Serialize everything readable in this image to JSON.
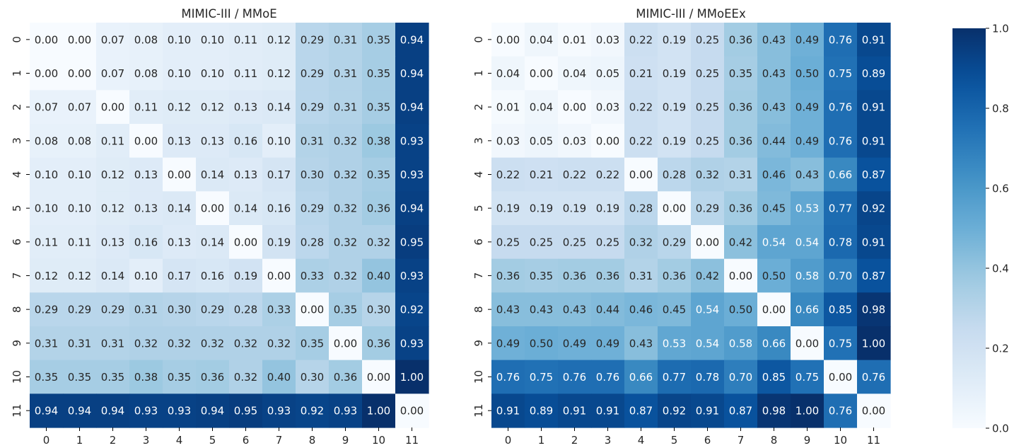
{
  "chart_data": [
    {
      "type": "heatmap",
      "title": "MIMIC-III / MMoE",
      "xlabel": "",
      "ylabel": "",
      "x_categories": [
        "0",
        "1",
        "2",
        "3",
        "4",
        "5",
        "6",
        "7",
        "8",
        "9",
        "10",
        "11"
      ],
      "y_categories": [
        "0",
        "1",
        "2",
        "3",
        "4",
        "5",
        "6",
        "7",
        "8",
        "9",
        "10",
        "11"
      ],
      "values": [
        [
          0.0,
          0.0,
          0.07,
          0.08,
          0.1,
          0.1,
          0.11,
          0.12,
          0.29,
          0.31,
          0.35,
          0.94
        ],
        [
          0.0,
          0.0,
          0.07,
          0.08,
          0.1,
          0.1,
          0.11,
          0.12,
          0.29,
          0.31,
          0.35,
          0.94
        ],
        [
          0.07,
          0.07,
          0.0,
          0.11,
          0.12,
          0.12,
          0.13,
          0.14,
          0.29,
          0.31,
          0.35,
          0.94
        ],
        [
          0.08,
          0.08,
          0.11,
          0.0,
          0.13,
          0.13,
          0.16,
          0.1,
          0.31,
          0.32,
          0.38,
          0.93
        ],
        [
          0.1,
          0.1,
          0.12,
          0.13,
          0.0,
          0.14,
          0.13,
          0.17,
          0.3,
          0.32,
          0.35,
          0.93
        ],
        [
          0.1,
          0.1,
          0.12,
          0.13,
          0.14,
          0.0,
          0.14,
          0.16,
          0.29,
          0.32,
          0.36,
          0.94
        ],
        [
          0.11,
          0.11,
          0.13,
          0.16,
          0.13,
          0.14,
          0.0,
          0.19,
          0.28,
          0.32,
          0.32,
          0.95
        ],
        [
          0.12,
          0.12,
          0.14,
          0.1,
          0.17,
          0.16,
          0.19,
          0.0,
          0.33,
          0.32,
          0.4,
          0.93
        ],
        [
          0.29,
          0.29,
          0.29,
          0.31,
          0.3,
          0.29,
          0.28,
          0.33,
          0.0,
          0.35,
          0.3,
          0.92
        ],
        [
          0.31,
          0.31,
          0.31,
          0.32,
          0.32,
          0.32,
          0.32,
          0.32,
          0.35,
          0.0,
          0.36,
          0.93
        ],
        [
          0.35,
          0.35,
          0.35,
          0.38,
          0.35,
          0.36,
          0.32,
          0.4,
          0.3,
          0.36,
          0.0,
          1.0
        ],
        [
          0.94,
          0.94,
          0.94,
          0.93,
          0.93,
          0.94,
          0.95,
          0.93,
          0.92,
          0.93,
          1.0,
          0.0
        ]
      ]
    },
    {
      "type": "heatmap",
      "title": "MIMIC-III / MMoEEx",
      "xlabel": "",
      "ylabel": "",
      "x_categories": [
        "0",
        "1",
        "2",
        "3",
        "4",
        "5",
        "6",
        "7",
        "8",
        "9",
        "10",
        "11"
      ],
      "y_categories": [
        "0",
        "1",
        "2",
        "3",
        "4",
        "5",
        "6",
        "7",
        "8",
        "9",
        "10",
        "11"
      ],
      "values": [
        [
          0.0,
          0.04,
          0.01,
          0.03,
          0.22,
          0.19,
          0.25,
          0.36,
          0.43,
          0.49,
          0.76,
          0.91
        ],
        [
          0.04,
          0.0,
          0.04,
          0.05,
          0.21,
          0.19,
          0.25,
          0.35,
          0.43,
          0.5,
          0.75,
          0.89
        ],
        [
          0.01,
          0.04,
          0.0,
          0.03,
          0.22,
          0.19,
          0.25,
          0.36,
          0.43,
          0.49,
          0.76,
          0.91
        ],
        [
          0.03,
          0.05,
          0.03,
          0.0,
          0.22,
          0.19,
          0.25,
          0.36,
          0.44,
          0.49,
          0.76,
          0.91
        ],
        [
          0.22,
          0.21,
          0.22,
          0.22,
          0.0,
          0.28,
          0.32,
          0.31,
          0.46,
          0.43,
          0.66,
          0.87
        ],
        [
          0.19,
          0.19,
          0.19,
          0.19,
          0.28,
          0.0,
          0.29,
          0.36,
          0.45,
          0.53,
          0.77,
          0.92
        ],
        [
          0.25,
          0.25,
          0.25,
          0.25,
          0.32,
          0.29,
          0.0,
          0.42,
          0.54,
          0.54,
          0.78,
          0.91
        ],
        [
          0.36,
          0.35,
          0.36,
          0.36,
          0.31,
          0.36,
          0.42,
          0.0,
          0.5,
          0.58,
          0.7,
          0.87
        ],
        [
          0.43,
          0.43,
          0.43,
          0.44,
          0.46,
          0.45,
          0.54,
          0.5,
          0.0,
          0.66,
          0.85,
          0.98
        ],
        [
          0.49,
          0.5,
          0.49,
          0.49,
          0.43,
          0.53,
          0.54,
          0.58,
          0.66,
          0.0,
          0.75,
          1.0
        ],
        [
          0.76,
          0.75,
          0.76,
          0.76,
          0.66,
          0.77,
          0.78,
          0.7,
          0.85,
          0.75,
          0.0,
          0.76
        ],
        [
          0.91,
          0.89,
          0.91,
          0.91,
          0.87,
          0.92,
          0.91,
          0.87,
          0.98,
          1.0,
          0.76,
          0.0
        ]
      ]
    }
  ],
  "colorbar": {
    "colormap": "Blues",
    "vmin": 0.0,
    "vmax": 1.0,
    "tick_values": [
      0.0,
      0.2,
      0.4,
      0.6,
      0.8,
      1.0
    ],
    "tick_labels": [
      "0.0",
      "0.2",
      "0.4",
      "0.6",
      "0.8",
      "1.0"
    ]
  },
  "colors": {
    "text_dark": "#262626",
    "text_light": "#ffffff",
    "axis": "#000000"
  }
}
